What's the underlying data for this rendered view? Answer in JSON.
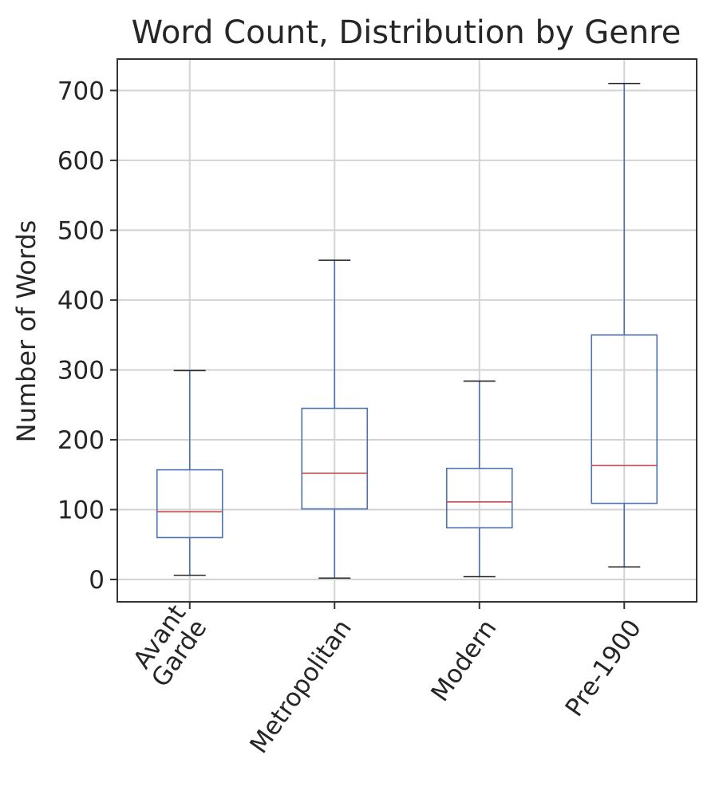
{
  "chart_data": {
    "type": "boxplot",
    "title": "Word Count, Distribution by Genre",
    "xlabel": "",
    "ylabel": "Number of Words",
    "ylim": [
      -32,
      745
    ],
    "yticks": [
      0,
      100,
      200,
      300,
      400,
      500,
      600,
      700
    ],
    "grid": true,
    "categories": [
      "Avant\nGarde",
      "Metropolitan",
      "Modern",
      "Pre-1900"
    ],
    "boxes": [
      {
        "category": "Avant\nGarde",
        "whisker_low": 6,
        "q1": 60,
        "median": 97,
        "q3": 157,
        "whisker_high": 299
      },
      {
        "category": "Metropolitan",
        "whisker_low": 2,
        "q1": 101,
        "median": 152,
        "q3": 245,
        "whisker_high": 457
      },
      {
        "category": "Modern",
        "whisker_low": 4,
        "q1": 74,
        "median": 111,
        "q3": 159,
        "whisker_high": 284
      },
      {
        "category": "Pre-1900",
        "whisker_low": 18,
        "q1": 109,
        "median": 163,
        "q3": 350,
        "whisker_high": 710
      }
    ],
    "colors": {
      "box": "#4c72b0",
      "median": "#c44e52",
      "whisker_cap": "#262626",
      "grid": "#d3d3d3",
      "frame": "#333333",
      "text": "#262626"
    }
  }
}
